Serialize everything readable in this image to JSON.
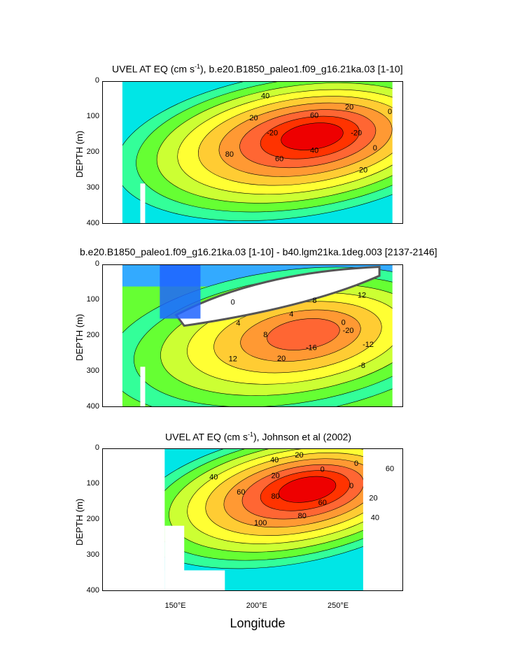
{
  "figure": {
    "x_axis_label": "Longitude"
  },
  "chart_data": [
    {
      "type": "heatmap",
      "title": "UVEL AT EQ (cm s",
      "title_sup": "-1",
      "title_rest": "), b.e20.B1850_paleo1.f09_g16.21ka.03 [1-10]",
      "ylabel": "DEPTH (m)",
      "ylim": [
        0,
        400
      ],
      "xlim": [
        105,
        290
      ],
      "y_ticks": [
        "0",
        "100",
        "200",
        "300",
        "400"
      ],
      "core_lon": 235,
      "core_depth": 150,
      "core_value": 80,
      "contour_labels": [
        "-20",
        "0",
        "20",
        "40",
        "60",
        "80",
        "-20",
        "20",
        "40",
        "60",
        "20",
        "0"
      ]
    },
    {
      "type": "heatmap",
      "title": "b.e20.B1850_paleo1.f09_g16.21ka.03 [1-10] - b40.lgm21ka.1deg.003 [2137-2146]",
      "ylabel": "DEPTH (m)",
      "ylim": [
        0,
        400
      ],
      "xlim": [
        105,
        290
      ],
      "y_ticks": [
        "0",
        "100",
        "200",
        "300",
        "400"
      ],
      "core_lon": 230,
      "core_depth": 190,
      "core_value": 12,
      "contour_labels": [
        "-20",
        "-12",
        "-8",
        "-16",
        "20",
        "12",
        "8",
        "4",
        "0",
        "4",
        "8",
        "12",
        "0"
      ]
    },
    {
      "type": "heatmap",
      "title": "UVEL AT EQ (cm s",
      "title_sup": "-1",
      "title_rest": "), Johnson et al (2002)",
      "ylabel": "DEPTH (m)",
      "ylim": [
        0,
        400
      ],
      "xlim": [
        105,
        290
      ],
      "y_ticks": [
        "0",
        "100",
        "200",
        "300",
        "400"
      ],
      "x_ticks": [
        "150°E",
        "200°E",
        "250°E"
      ],
      "core_lon": 232,
      "core_depth": 110,
      "core_value": 100,
      "contour_labels": [
        "0",
        "20",
        "40",
        "60",
        "80",
        "100",
        "80",
        "60",
        "40",
        "20",
        "40",
        "20",
        "0",
        "0",
        "60"
      ]
    }
  ]
}
